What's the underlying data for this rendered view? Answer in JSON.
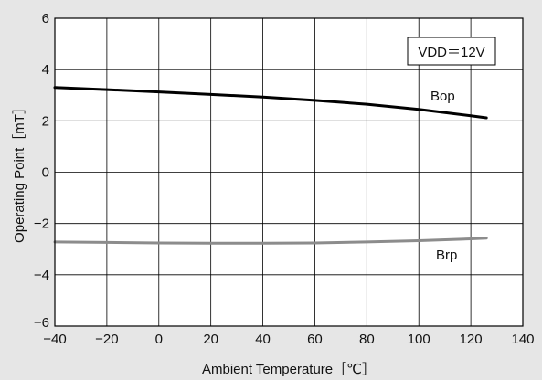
{
  "chart_data": {
    "type": "line",
    "xlabel": "Ambient Temperature［℃］",
    "ylabel": "Operating Point［mT］",
    "xlim": [
      -40,
      140
    ],
    "ylim": [
      -6,
      6
    ],
    "x_ticks": [
      -40,
      -20,
      0,
      20,
      40,
      60,
      80,
      100,
      120,
      140
    ],
    "y_ticks": [
      -6,
      -4,
      -2,
      0,
      2,
      4,
      6
    ],
    "x_tick_labels": [
      "−40",
      "−20",
      "0",
      "20",
      "40",
      "60",
      "80",
      "100",
      "120",
      "140"
    ],
    "y_tick_labels": [
      "−6",
      "−4",
      "−2",
      "0",
      "2",
      "4",
      "6"
    ],
    "grid": true,
    "annotation": "VDD＝12V",
    "series": [
      {
        "name": "Bop",
        "color": "#000000",
        "x": [
          -40,
          -20,
          0,
          20,
          40,
          60,
          80,
          100,
          120,
          126
        ],
        "y": [
          3.3,
          3.22,
          3.13,
          3.03,
          2.93,
          2.8,
          2.65,
          2.45,
          2.2,
          2.12
        ]
      },
      {
        "name": "Brp",
        "color": "#8c8c8c",
        "x": [
          -40,
          -20,
          0,
          20,
          40,
          60,
          80,
          100,
          120,
          126
        ],
        "y": [
          -2.72,
          -2.74,
          -2.76,
          -2.77,
          -2.77,
          -2.76,
          -2.72,
          -2.67,
          -2.6,
          -2.57
        ]
      }
    ]
  }
}
